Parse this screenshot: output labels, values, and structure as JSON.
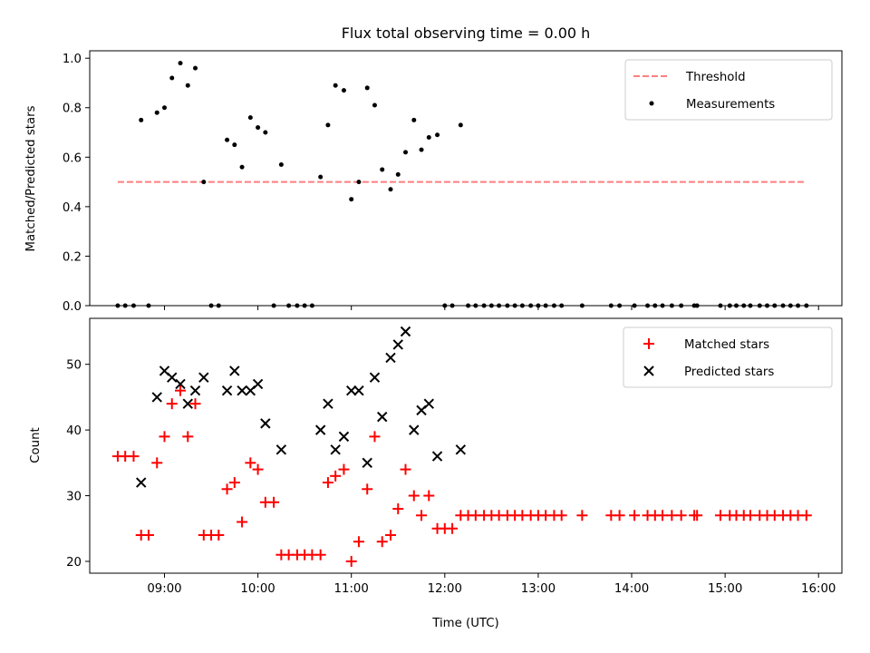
{
  "chart_data": [
    {
      "type": "line+scatter",
      "title": "Flux total observing time = 0.00 h",
      "ylabel": "Matched/Predicted stars",
      "xlabel": "",
      "xlim": [
        8.2,
        16.25
      ],
      "ylim": [
        0.0,
        1.03
      ],
      "yticks": [
        0.0,
        0.2,
        0.4,
        0.6,
        0.8,
        1.0
      ],
      "ytick_labels": [
        "0.0",
        "0.2",
        "0.4",
        "0.6",
        "0.8",
        "1.0"
      ],
      "xticks": [
        9,
        10,
        11,
        12,
        13,
        14,
        15,
        16
      ],
      "series": [
        {
          "name": "Threshold",
          "kind": "dashed-line",
          "color": "#ff7f7f",
          "x": [
            8.5,
            15.87
          ],
          "y": [
            0.5,
            0.5
          ]
        },
        {
          "name": "Measurements",
          "kind": "scatter",
          "color": "#000000",
          "x": [
            8.5,
            8.58,
            8.67,
            8.75,
            8.83,
            8.92,
            9.0,
            9.08,
            9.17,
            9.25,
            9.33,
            9.42,
            9.5,
            9.58,
            9.67,
            9.75,
            9.83,
            9.92,
            10.0,
            10.08,
            10.17,
            10.25,
            10.33,
            10.42,
            10.5,
            10.58,
            10.67,
            10.75,
            10.83,
            10.92,
            11.0,
            11.08,
            11.17,
            11.25,
            11.33,
            11.42,
            11.5,
            11.58,
            11.67,
            11.75,
            11.83,
            11.92,
            12.0,
            12.08,
            12.17,
            12.25,
            12.33,
            12.42,
            12.5,
            12.58,
            12.67,
            12.75,
            12.83,
            12.92,
            13.0,
            13.08,
            13.17,
            13.25,
            13.47,
            13.78,
            13.87,
            14.03,
            14.17,
            14.25,
            14.33,
            14.43,
            14.53,
            14.67,
            14.7,
            14.95,
            15.05,
            15.12,
            15.2,
            15.27,
            15.37,
            15.45,
            15.53,
            15.62,
            15.7,
            15.78,
            15.87
          ],
          "y": [
            0.0,
            0.0,
            0.0,
            0.75,
            0.0,
            0.78,
            0.8,
            0.92,
            0.98,
            0.89,
            0.96,
            0.5,
            0.0,
            0.0,
            0.67,
            0.65,
            0.56,
            0.76,
            0.72,
            0.7,
            0.0,
            0.57,
            0.0,
            0.0,
            0.0,
            0.0,
            0.52,
            0.73,
            0.89,
            0.87,
            0.43,
            0.5,
            0.88,
            0.81,
            0.55,
            0.47,
            0.53,
            0.62,
            0.75,
            0.63,
            0.68,
            0.69,
            0.0,
            0.0,
            0.73,
            0.0,
            0.0,
            0.0,
            0.0,
            0.0,
            0.0,
            0.0,
            0.0,
            0.0,
            0.0,
            0.0,
            0.0,
            0.0,
            0.0,
            0.0,
            0.0,
            0.0,
            0.0,
            0.0,
            0.0,
            0.0,
            0.0,
            0.0,
            0.0,
            0.0,
            0.0,
            0.0,
            0.0,
            0.0,
            0.0,
            0.0,
            0.0,
            0.0,
            0.0,
            0.0,
            0.0
          ]
        }
      ],
      "legend": {
        "position": "top-right",
        "entries": [
          "Threshold",
          "Measurements"
        ]
      }
    },
    {
      "type": "scatter",
      "title": "",
      "ylabel": "Count",
      "xlabel": "Time (UTC)",
      "xlim": [
        8.2,
        16.25
      ],
      "ylim": [
        18.2,
        57.0
      ],
      "yticks": [
        20,
        30,
        40,
        50
      ],
      "ytick_labels": [
        "20",
        "30",
        "40",
        "50"
      ],
      "xticks": [
        9,
        10,
        11,
        12,
        13,
        14,
        15,
        16
      ],
      "xtick_labels": [
        "09:00",
        "10:00",
        "11:00",
        "12:00",
        "13:00",
        "14:00",
        "15:00",
        "16:00"
      ],
      "series": [
        {
          "name": "Matched stars",
          "marker": "plus",
          "color": "#ff0000",
          "x": [
            8.5,
            8.58,
            8.67,
            8.75,
            8.83,
            8.92,
            9.0,
            9.08,
            9.17,
            9.25,
            9.33,
            9.42,
            9.5,
            9.58,
            9.67,
            9.75,
            9.83,
            9.92,
            10.0,
            10.08,
            10.17,
            10.25,
            10.33,
            10.42,
            10.5,
            10.58,
            10.67,
            10.75,
            10.83,
            10.92,
            11.0,
            11.08,
            11.17,
            11.25,
            11.33,
            11.42,
            11.5,
            11.58,
            11.67,
            11.75,
            11.83,
            11.92,
            12.0,
            12.08,
            12.17,
            12.25,
            12.33,
            12.42,
            12.5,
            12.58,
            12.67,
            12.75,
            12.83,
            12.92,
            13.0,
            13.08,
            13.17,
            13.25,
            13.47,
            13.78,
            13.87,
            14.03,
            14.17,
            14.25,
            14.33,
            14.43,
            14.53,
            14.67,
            14.7,
            14.95,
            15.05,
            15.12,
            15.2,
            15.27,
            15.37,
            15.45,
            15.53,
            15.62,
            15.7,
            15.78,
            15.87
          ],
          "y": [
            36,
            36,
            36,
            24,
            24,
            35,
            39,
            44,
            46,
            39,
            44,
            24,
            24,
            24,
            31,
            32,
            26,
            35,
            34,
            29,
            29,
            21,
            21,
            21,
            21,
            21,
            21,
            32,
            33,
            34,
            20,
            23,
            31,
            39,
            23,
            24,
            28,
            34,
            30,
            27,
            30,
            25,
            25,
            25,
            27,
            27,
            27,
            27,
            27,
            27,
            27,
            27,
            27,
            27,
            27,
            27,
            27,
            27,
            27,
            27,
            27,
            27,
            27,
            27,
            27,
            27,
            27,
            27,
            27,
            27,
            27,
            27,
            27,
            27,
            27,
            27,
            27,
            27,
            27,
            27,
            27
          ]
        },
        {
          "name": "Predicted stars",
          "marker": "x",
          "color": "#000000",
          "x": [
            8.75,
            8.92,
            9.0,
            9.08,
            9.17,
            9.25,
            9.33,
            9.42,
            9.67,
            9.75,
            9.83,
            9.92,
            10.0,
            10.08,
            10.25,
            10.67,
            10.75,
            10.83,
            10.92,
            11.0,
            11.08,
            11.17,
            11.25,
            11.33,
            11.42,
            11.5,
            11.58,
            11.67,
            11.75,
            11.83,
            11.92,
            12.17
          ],
          "y": [
            32,
            45,
            49,
            48,
            47,
            44,
            46,
            48,
            46,
            49,
            46,
            46,
            47,
            41,
            37,
            40,
            44,
            37,
            39,
            46,
            46,
            35,
            48,
            42,
            51,
            53,
            55,
            40,
            43,
            44,
            36,
            37
          ]
        }
      ],
      "legend": {
        "position": "top-right",
        "entries": [
          "Matched stars",
          "Predicted stars"
        ]
      }
    }
  ]
}
